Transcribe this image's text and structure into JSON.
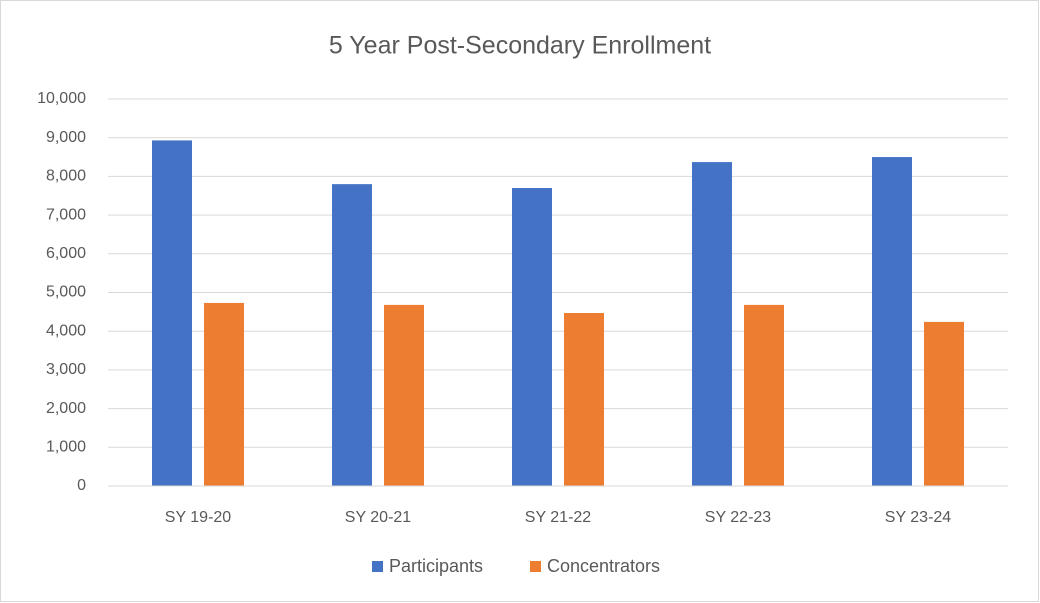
{
  "chart_data": {
    "type": "bar",
    "title": "5 Year Post-Secondary Enrollment",
    "categories": [
      "SY 19-20",
      "SY 20-21",
      "SY 21-22",
      "SY 22-23",
      "SY 23-24"
    ],
    "series": [
      {
        "name": "Participants",
        "color": "#4472c4",
        "values": [
          8930,
          7800,
          7700,
          8370,
          8500
        ]
      },
      {
        "name": "Concentrators",
        "color": "#ed7d31",
        "values": [
          4730,
          4680,
          4470,
          4680,
          4240
        ]
      }
    ],
    "ylim": [
      0,
      10000
    ],
    "yticks": [
      0,
      {
        "value": 1000,
        "label": "1,000"
      },
      {
        "value": 2000,
        "label": "2,000"
      },
      {
        "value": 3000,
        "label": "3,000"
      },
      {
        "value": 4000,
        "label": "4,000"
      },
      {
        "value": 5000,
        "label": "5,000"
      },
      {
        "value": 6000,
        "label": "6,000"
      },
      {
        "value": 7000,
        "label": "7,000"
      },
      {
        "value": 8000,
        "label": "8,000"
      },
      {
        "value": 9000,
        "label": "9,000"
      },
      {
        "value": 10000,
        "label": "10,000"
      }
    ],
    "grid": true,
    "legend": "bottom"
  }
}
